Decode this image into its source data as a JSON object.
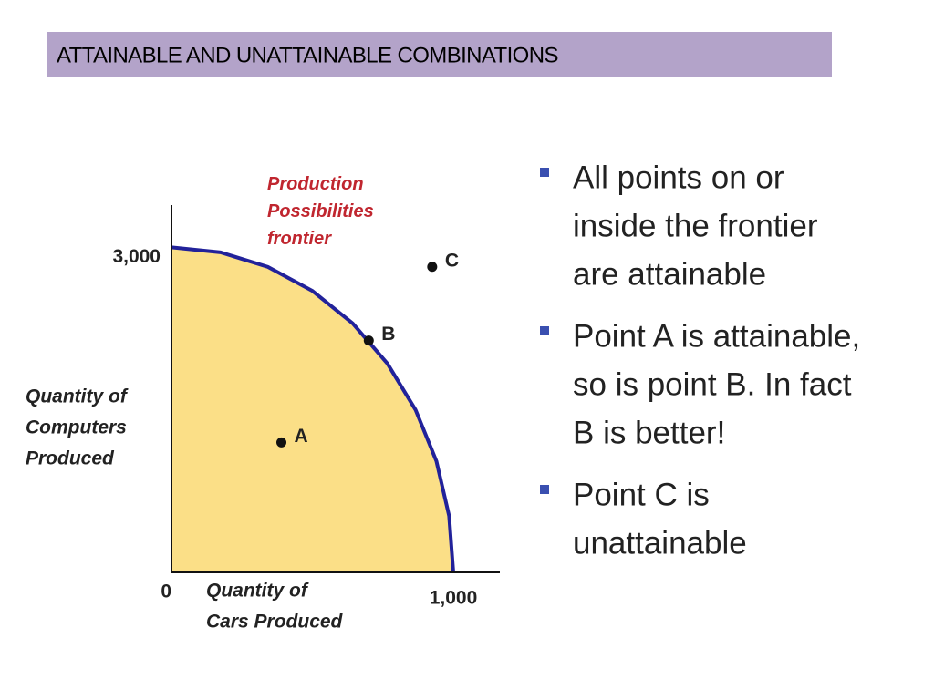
{
  "slide": {
    "title": "ATTAINABLE AND UNATTAINABLE COMBINATIONS",
    "bullets": [
      [
        "All points on or",
        "inside the frontier",
        "are attainable"
      ],
      [
        "Point A is attainable,",
        "so is point B.  In fact",
        "B is better!"
      ],
      [
        "Point C is",
        "unattainable"
      ]
    ]
  },
  "chart_data": {
    "type": "scatter",
    "xlabel": [
      "Quantity of",
      "Cars Produced"
    ],
    "ylabel": [
      "Quantity of",
      "Computers",
      "Produced"
    ],
    "xlim": [
      0,
      1165
    ],
    "ylim": [
      0,
      3390
    ],
    "xticks": [
      0,
      {
        "value": 1000,
        "label": "1,000"
      }
    ],
    "yticks": [
      {
        "value": 3000,
        "label": "3,000"
      }
    ],
    "frontier": {
      "name": "Production Possibilities frontier",
      "color": "#22229a",
      "fill": "#fbdf87",
      "x": [
        0,
        174,
        342,
        500,
        643,
        766,
        866,
        940,
        985,
        1000
      ],
      "values": [
        3000,
        2954,
        2819,
        2598,
        2298,
        1928,
        1500,
        1026,
        521,
        0
      ]
    },
    "points": {
      "color": "#111111",
      "labels": [
        "A",
        "B",
        "C"
      ],
      "x": [
        390,
        700,
        925
      ],
      "values": [
        1200,
        2140,
        2820
      ]
    }
  }
}
